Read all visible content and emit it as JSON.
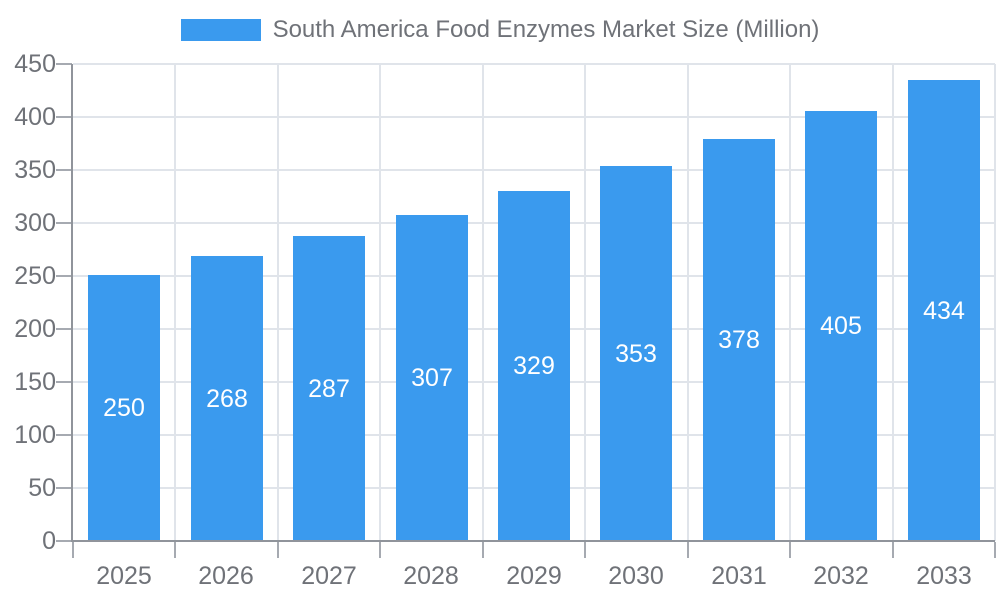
{
  "chart_data": {
    "type": "bar",
    "title": "South America Food Enzymes Market Size (Million)",
    "series_name": "South America Food Enzymes Market Size (Million)",
    "categories": [
      "2025",
      "2026",
      "2027",
      "2028",
      "2029",
      "2030",
      "2031",
      "2032",
      "2033"
    ],
    "values": [
      250,
      268,
      287,
      307,
      329,
      353,
      378,
      405,
      434
    ],
    "xlabel": "",
    "ylabel": "",
    "ylim": [
      0,
      450
    ],
    "ytick_step": 50,
    "ytick_labels": [
      "0",
      "50",
      "100",
      "150",
      "200",
      "250",
      "300",
      "350",
      "400",
      "450"
    ],
    "grid": true,
    "legend_position": "top-center",
    "value_label_position": "inside-center",
    "colors": {
      "bar": "#3A9AEE",
      "value_label": "#FFFFFF",
      "axis_label": "#6F7278",
      "legend_text": "#6F7278",
      "grid_line": "#E0E4EA",
      "axis_line": "#90949B",
      "tick": "#A6AAB1",
      "background": "#FFFFFF"
    }
  }
}
